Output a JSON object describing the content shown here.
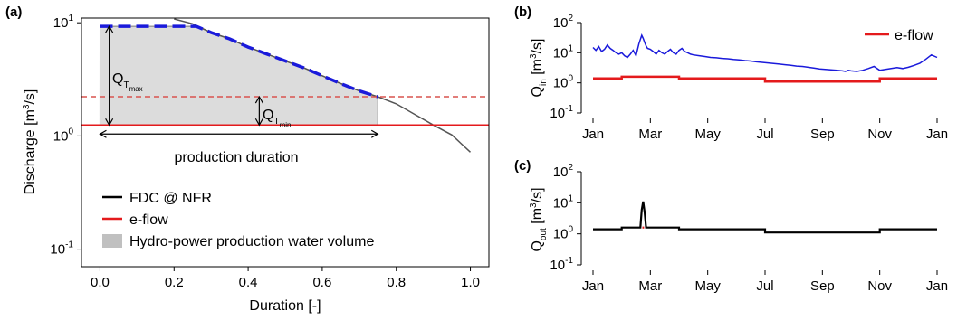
{
  "chart_data": [
    {
      "panel_label": "(a)",
      "type": "area",
      "xlabel": "Duration [-]",
      "ylabel_text": "Discharge [m",
      "ylabel_sup": "3",
      "ylabel_tail": "/s]",
      "y_scale": "log",
      "xlim": [
        -0.05,
        1.05
      ],
      "ylim": [
        0.07,
        11
      ],
      "x_ticks": [
        "0.0",
        "0.2",
        "0.4",
        "0.6",
        "0.8",
        "1.0"
      ],
      "x_tick_values": [
        0,
        0.2,
        0.4,
        0.6,
        0.8,
        1.0
      ],
      "y_ticks": [
        {
          "value": 10,
          "base": "10",
          "exp": "1"
        },
        {
          "value": 1,
          "base": "10",
          "exp": "0"
        },
        {
          "value": 0.1,
          "base": "10",
          "exp": "-1"
        }
      ],
      "fdc": {
        "x": [
          0.2,
          0.25,
          0.3,
          0.35,
          0.4,
          0.45,
          0.5,
          0.55,
          0.6,
          0.65,
          0.7,
          0.75,
          0.8,
          0.85,
          0.9,
          0.95,
          1.0
        ],
        "y": [
          10.8,
          9.8,
          8.2,
          7.2,
          6.1,
          5.3,
          4.6,
          4.0,
          3.4,
          2.9,
          2.5,
          2.22,
          1.92,
          1.55,
          1.25,
          1.02,
          0.72
        ]
      },
      "production_volume": {
        "x": [
          0.0,
          0.02,
          0.26,
          0.3,
          0.35,
          0.4,
          0.45,
          0.5,
          0.55,
          0.6,
          0.65,
          0.7,
          0.75
        ],
        "y": [
          9.3,
          9.3,
          9.3,
          8.2,
          7.2,
          6.1,
          5.3,
          4.6,
          4.0,
          3.4,
          2.9,
          2.5,
          2.22
        ],
        "base": 1.25
      },
      "eflow_value": 1.25,
      "qtmin_level": 2.22,
      "qtmax_level": 9.3,
      "annotations": {
        "qtmax_main": "Q",
        "qtmax_sub": "T",
        "qtmax_subsub": "max",
        "qtmin_main": "Q",
        "qtmin_sub": "T",
        "qtmin_subsub": "min",
        "production_duration": "production duration"
      },
      "legend": [
        {
          "label": "FDC @ NFR",
          "color": "#000000",
          "kind": "line"
        },
        {
          "label": "e-flow",
          "color": "#e41a1c",
          "kind": "line"
        },
        {
          "label": "Hydro-power production water volume",
          "color": "#c0c0c0",
          "kind": "box"
        }
      ],
      "legend_position": "bottom-left"
    },
    {
      "panel_label": "(b)",
      "type": "line",
      "y_scale": "log",
      "ylabel_main": "Q",
      "ylabel_sub": "in",
      "ylabel_text": " [m",
      "ylabel_sup": "3",
      "ylabel_tail": "/s]",
      "ylim": [
        0.1,
        100
      ],
      "xlim": [
        0,
        12
      ],
      "x_ticks": [
        "Jan",
        "Mar",
        "May",
        "Jul",
        "Sep",
        "Nov",
        "Jan"
      ],
      "x_tick_values": [
        0,
        2,
        4,
        6,
        8,
        10,
        12
      ],
      "y_ticks": [
        {
          "value": 100,
          "base": "10",
          "exp": "2"
        },
        {
          "value": 10,
          "base": "10",
          "exp": "1"
        },
        {
          "value": 1,
          "base": "10",
          "exp": "0"
        },
        {
          "value": 0.1,
          "base": "10",
          "exp": "-1"
        }
      ],
      "series": [
        {
          "name": "",
          "color": "#1a1adb",
          "x": [
            0,
            0.1,
            0.2,
            0.3,
            0.4,
            0.5,
            0.6,
            0.7,
            0.8,
            0.9,
            1.0,
            1.1,
            1.2,
            1.3,
            1.4,
            1.5,
            1.6,
            1.7,
            1.75,
            1.8,
            1.85,
            1.9,
            2.0,
            2.1,
            2.2,
            2.3,
            2.4,
            2.5,
            2.6,
            2.7,
            2.8,
            2.9,
            3.0,
            3.1,
            3.2,
            3.3,
            3.4,
            3.5,
            3.7,
            3.9,
            4.1,
            4.3,
            4.5,
            4.7,
            4.9,
            5.1,
            5.3,
            5.5,
            5.7,
            5.9,
            6.1,
            6.3,
            6.5,
            6.7,
            6.9,
            7.1,
            7.3,
            7.5,
            7.7,
            7.9,
            8.1,
            8.3,
            8.5,
            8.7,
            8.8,
            8.85,
            8.9,
            9.0,
            9.2,
            9.4,
            9.6,
            9.8,
            10.0,
            10.2,
            10.4,
            10.6,
            10.8,
            11.0,
            11.2,
            11.4,
            11.6,
            11.8,
            12.0
          ],
          "y": [
            15,
            12,
            16,
            11,
            13,
            18,
            14,
            12,
            10,
            9,
            10,
            8,
            7,
            9,
            12,
            8,
            20,
            38,
            30,
            22,
            17,
            14,
            13,
            11,
            9,
            12,
            10,
            9,
            11,
            13,
            10,
            9,
            12,
            14,
            11,
            10,
            9,
            8.5,
            8,
            7.5,
            7,
            6.8,
            6.5,
            6.3,
            6,
            5.8,
            5.5,
            5.3,
            5,
            4.8,
            4.6,
            4.4,
            4.2,
            4,
            3.8,
            3.6,
            3.5,
            3.3,
            3.1,
            2.9,
            2.8,
            2.7,
            2.6,
            2.5,
            2.4,
            2.5,
            2.6,
            2.5,
            2.4,
            2.6,
            3.0,
            3.5,
            2.6,
            2.8,
            3.0,
            3.2,
            3.0,
            3.3,
            3.8,
            4.5,
            6.0,
            8.5,
            7.0
          ]
        },
        {
          "name": "e-flow",
          "color": "#e41a1c",
          "x": [
            0,
            1,
            1,
            3,
            3,
            6,
            6,
            10,
            10,
            12
          ],
          "y": [
            1.4,
            1.4,
            1.6,
            1.6,
            1.4,
            1.4,
            1.1,
            1.1,
            1.4,
            1.4
          ]
        }
      ],
      "legend_position": "top-right"
    },
    {
      "panel_label": "(c)",
      "type": "line",
      "y_scale": "log",
      "ylabel_main": "Q",
      "ylabel_sub": "out",
      "ylabel_text": " [m",
      "ylabel_sup": "3",
      "ylabel_tail": "/s]",
      "ylim": [
        0.1,
        100
      ],
      "xlim": [
        0,
        12
      ],
      "x_ticks": [
        "Jan",
        "Mar",
        "May",
        "Jul",
        "Sep",
        "Nov",
        "Jan"
      ],
      "x_tick_values": [
        0,
        2,
        4,
        6,
        8,
        10,
        12
      ],
      "y_ticks": [
        {
          "value": 100,
          "base": "10",
          "exp": "2"
        },
        {
          "value": 10,
          "base": "10",
          "exp": "1"
        },
        {
          "value": 1,
          "base": "10",
          "exp": "0"
        },
        {
          "value": 0.1,
          "base": "10",
          "exp": "-1"
        }
      ],
      "series": [
        {
          "name": "",
          "color": "#000000",
          "x": [
            0,
            1,
            1,
            1.65,
            1.7,
            1.75,
            1.8,
            1.85,
            3,
            3,
            6,
            6,
            10,
            10,
            12
          ],
          "y": [
            1.4,
            1.4,
            1.6,
            1.6,
            6,
            11,
            5,
            1.6,
            1.6,
            1.4,
            1.4,
            1.1,
            1.1,
            1.4,
            1.4
          ]
        },
        {
          "name": "",
          "color": "#e41a1c",
          "x": [
            1.72,
            1.78
          ],
          "y": [
            1.6,
            1.6
          ]
        }
      ]
    }
  ]
}
